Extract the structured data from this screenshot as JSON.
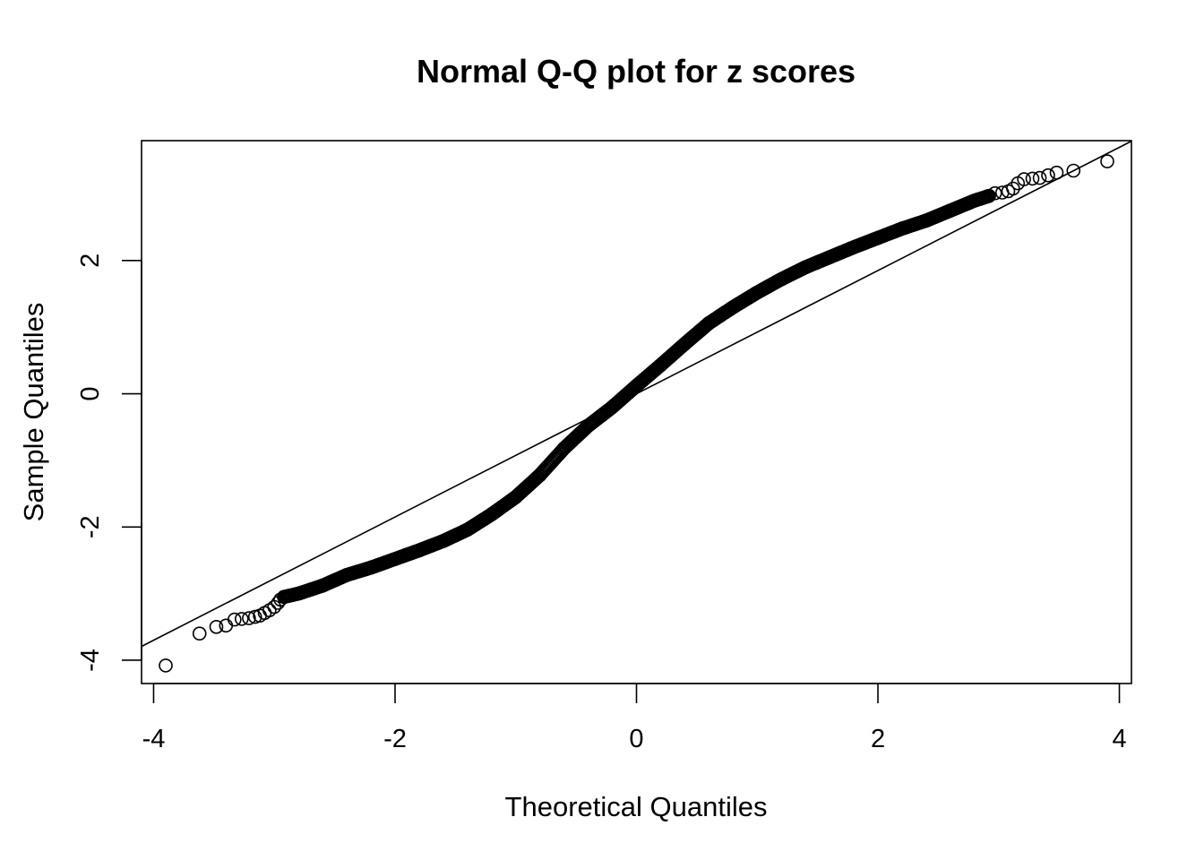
{
  "chart_data": {
    "type": "scatter",
    "title": "Normal Q-Q plot for z scores",
    "xlabel": "Theoretical Quantiles",
    "ylabel": "Sample Quantiles",
    "xlim": [
      -4.1,
      4.1
    ],
    "ylim": [
      -4.35,
      3.8
    ],
    "x_ticks": [
      {
        "value": -4,
        "label": "-4"
      },
      {
        "value": -2,
        "label": "-2"
      },
      {
        "value": 0,
        "label": "0"
      },
      {
        "value": 2,
        "label": "2"
      },
      {
        "value": 4,
        "label": "4"
      }
    ],
    "y_ticks": [
      {
        "value": -4,
        "label": "-4"
      },
      {
        "value": -2,
        "label": "-2"
      },
      {
        "value": 0,
        "label": "0"
      },
      {
        "value": 2,
        "label": "2"
      }
    ],
    "reference_line": {
      "slope": 0.925,
      "intercept": 0.0
    },
    "grid": false,
    "points": [
      {
        "x": -3.9,
        "y": -4.08
      },
      {
        "x": -3.62,
        "y": -3.6
      },
      {
        "x": -3.48,
        "y": -3.5
      },
      {
        "x": -3.4,
        "y": -3.48
      },
      {
        "x": -3.33,
        "y": -3.39
      },
      {
        "x": -3.27,
        "y": -3.38
      },
      {
        "x": -3.21,
        "y": -3.37
      },
      {
        "x": -3.16,
        "y": -3.35
      },
      {
        "x": -3.12,
        "y": -3.33
      },
      {
        "x": -3.08,
        "y": -3.29
      },
      {
        "x": -3.04,
        "y": -3.25
      },
      {
        "x": -3.0,
        "y": -3.2
      },
      {
        "x": -2.97,
        "y": -3.14
      },
      {
        "x": -2.95,
        "y": -3.09
      },
      {
        "x": -2.92,
        "y": -3.05
      },
      {
        "x": -2.8,
        "y": -3.0
      },
      {
        "x": -2.6,
        "y": -2.88
      },
      {
        "x": -2.4,
        "y": -2.72
      },
      {
        "x": -2.2,
        "y": -2.61
      },
      {
        "x": -2.0,
        "y": -2.48
      },
      {
        "x": -1.8,
        "y": -2.35
      },
      {
        "x": -1.6,
        "y": -2.21
      },
      {
        "x": -1.4,
        "y": -2.04
      },
      {
        "x": -1.2,
        "y": -1.81
      },
      {
        "x": -1.0,
        "y": -1.55
      },
      {
        "x": -0.8,
        "y": -1.22
      },
      {
        "x": -0.6,
        "y": -0.82
      },
      {
        "x": -0.4,
        "y": -0.48
      },
      {
        "x": -0.2,
        "y": -0.2
      },
      {
        "x": 0.0,
        "y": 0.12
      },
      {
        "x": 0.2,
        "y": 0.43
      },
      {
        "x": 0.4,
        "y": 0.75
      },
      {
        "x": 0.6,
        "y": 1.06
      },
      {
        "x": 0.8,
        "y": 1.3
      },
      {
        "x": 1.0,
        "y": 1.52
      },
      {
        "x": 1.2,
        "y": 1.72
      },
      {
        "x": 1.4,
        "y": 1.9
      },
      {
        "x": 1.6,
        "y": 2.05
      },
      {
        "x": 1.8,
        "y": 2.2
      },
      {
        "x": 2.0,
        "y": 2.34
      },
      {
        "x": 2.2,
        "y": 2.48
      },
      {
        "x": 2.4,
        "y": 2.6
      },
      {
        "x": 2.6,
        "y": 2.75
      },
      {
        "x": 2.8,
        "y": 2.9
      },
      {
        "x": 2.92,
        "y": 2.97
      },
      {
        "x": 2.97,
        "y": 3.01
      },
      {
        "x": 3.03,
        "y": 3.02
      },
      {
        "x": 3.08,
        "y": 3.04
      },
      {
        "x": 3.12,
        "y": 3.08
      },
      {
        "x": 3.16,
        "y": 3.16
      },
      {
        "x": 3.21,
        "y": 3.22
      },
      {
        "x": 3.28,
        "y": 3.23
      },
      {
        "x": 3.34,
        "y": 3.24
      },
      {
        "x": 3.41,
        "y": 3.28
      },
      {
        "x": 3.48,
        "y": 3.32
      },
      {
        "x": 3.62,
        "y": 3.35
      },
      {
        "x": 3.9,
        "y": 3.49
      }
    ]
  }
}
